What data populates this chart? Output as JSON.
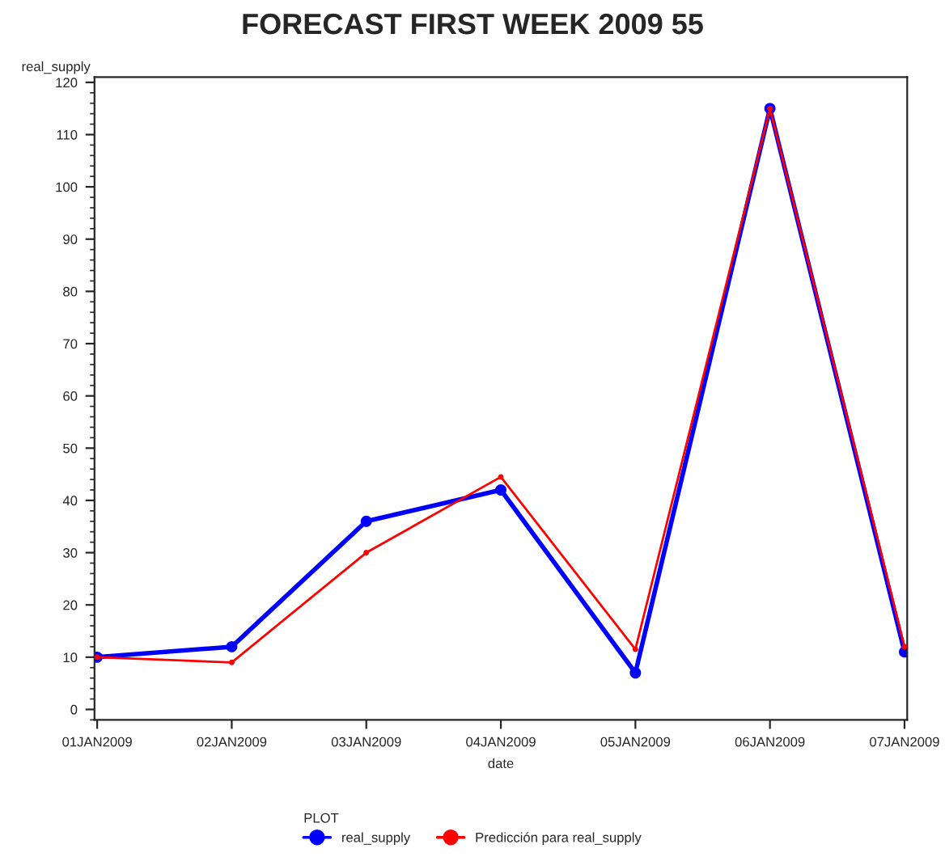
{
  "chart_data": {
    "type": "line",
    "title": "FORECAST FIRST WEEK 2009 55",
    "xlabel": "date",
    "ylabel": "real_supply",
    "legend_title": "PLOT",
    "categories": [
      "01JAN2009",
      "02JAN2009",
      "03JAN2009",
      "04JAN2009",
      "05JAN2009",
      "06JAN2009",
      "07JAN2009"
    ],
    "series": [
      {
        "name": "real_supply",
        "color": "#0000ff",
        "values": [
          10,
          12,
          36,
          42,
          7,
          115,
          11
        ]
      },
      {
        "name": "Predicción para real_supply",
        "color": "#ff0000",
        "values": [
          10,
          9,
          30,
          44.5,
          11.5,
          115,
          12
        ]
      }
    ],
    "ylim": [
      -2,
      121
    ],
    "yticks": [
      0,
      10,
      20,
      30,
      40,
      50,
      60,
      70,
      80,
      90,
      100,
      110,
      120
    ],
    "grid": false,
    "legend": "bottom",
    "marker": "circle",
    "line_style": "solid"
  }
}
